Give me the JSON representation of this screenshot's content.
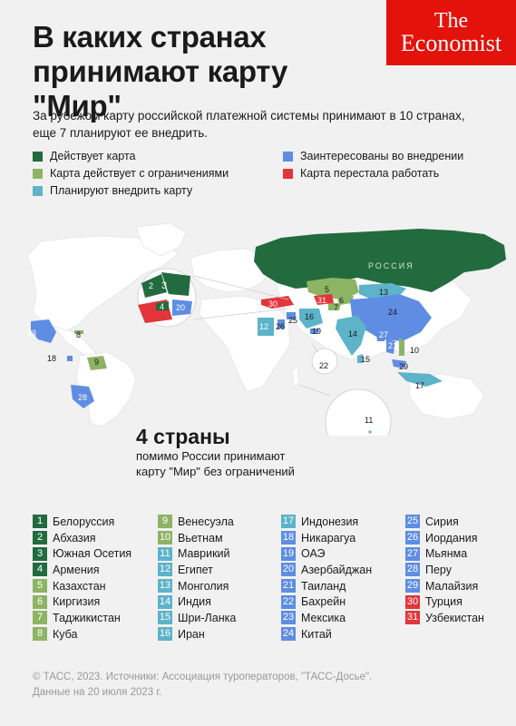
{
  "header": {
    "title_line1": "В каких странах",
    "title_line2": "принимают карту \"Мир\"",
    "logo_line1": "The",
    "logo_line2": "Economist",
    "subtitle_line1": "За рубежом карту российской платежной системы принимают в 10 странах,",
    "subtitle_line2": "еще 7 планируют ее внедрить."
  },
  "legend": {
    "active": "Действует карта",
    "limited": "Карта действует с ограничениями",
    "planned": "Планируют внедрить карту",
    "interested": "Заинтересованы во внедрении",
    "stopped": "Карта перестала работать"
  },
  "colors": {
    "active": "#226b3f",
    "limited": "#8db464",
    "planned": "#5db3c8",
    "interested": "#5e8de3",
    "stopped": "#e2353a",
    "land": "#ffffff",
    "logo_bg": "#e3120b"
  },
  "map": {
    "russia_label": "РОССИЯ",
    "big_count": "4 страны",
    "big_sub_line1": "помимо России принимают",
    "big_sub_line2": "карту \"Мир\" без ограничений"
  },
  "countries": [
    {
      "n": "1",
      "name": "Белоруссия",
      "status": "active"
    },
    {
      "n": "2",
      "name": "Абхазия",
      "status": "active"
    },
    {
      "n": "3",
      "name": "Южная Осетия",
      "status": "active"
    },
    {
      "n": "4",
      "name": "Армения",
      "status": "active"
    },
    {
      "n": "5",
      "name": "Казахстан",
      "status": "limited"
    },
    {
      "n": "6",
      "name": "Киргизия",
      "status": "limited"
    },
    {
      "n": "7",
      "name": "Таджикистан",
      "status": "limited"
    },
    {
      "n": "8",
      "name": "Куба",
      "status": "limited"
    },
    {
      "n": "9",
      "name": "Венесуэла",
      "status": "limited"
    },
    {
      "n": "10",
      "name": "Вьетнам",
      "status": "limited"
    },
    {
      "n": "11",
      "name": "Маврикий",
      "status": "planned"
    },
    {
      "n": "12",
      "name": "Египет",
      "status": "planned"
    },
    {
      "n": "13",
      "name": "Монголия",
      "status": "planned"
    },
    {
      "n": "14",
      "name": "Индия",
      "status": "planned"
    },
    {
      "n": "15",
      "name": "Шри-Ланка",
      "status": "planned"
    },
    {
      "n": "16",
      "name": "Иран",
      "status": "planned"
    },
    {
      "n": "17",
      "name": "Индонезия",
      "status": "planned"
    },
    {
      "n": "18",
      "name": "Никарагуа",
      "status": "interested"
    },
    {
      "n": "19",
      "name": "ОАЭ",
      "status": "interested"
    },
    {
      "n": "20",
      "name": "Азербайджан",
      "status": "interested"
    },
    {
      "n": "21",
      "name": "Таиланд",
      "status": "interested"
    },
    {
      "n": "22",
      "name": "Бахрейн",
      "status": "interested"
    },
    {
      "n": "23",
      "name": "Мексика",
      "status": "interested"
    },
    {
      "n": "24",
      "name": "Китай",
      "status": "interested"
    },
    {
      "n": "25",
      "name": "Сирия",
      "status": "interested"
    },
    {
      "n": "26",
      "name": "Иордания",
      "status": "interested"
    },
    {
      "n": "27",
      "name": "Мьянма",
      "status": "interested"
    },
    {
      "n": "28",
      "name": "Перу",
      "status": "interested"
    },
    {
      "n": "29",
      "name": "Малайзия",
      "status": "interested"
    },
    {
      "n": "30",
      "name": "Турция",
      "status": "stopped"
    },
    {
      "n": "31",
      "name": "Узбекистан",
      "status": "stopped"
    }
  ],
  "footer": {
    "line1": "© ТАСС, 2023. Источники: Ассоциация туроператоров, \"ТАСС-Досье\".",
    "line2": "Данные на 20 июля 2023 г."
  }
}
